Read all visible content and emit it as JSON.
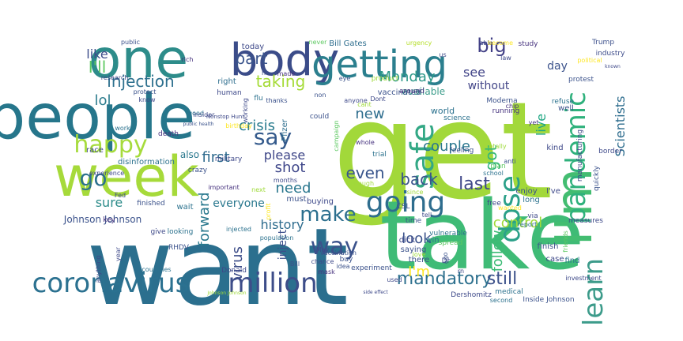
{
  "wordcloud": {
    "background": "#ffffff",
    "words": [
      {
        "text": "get",
        "color": "#a2d83a"
      },
      {
        "text": "want",
        "color": "#2b6f8e"
      },
      {
        "text": "take",
        "color": "#3fbb76"
      },
      {
        "text": "people",
        "color": "#26768b"
      },
      {
        "text": "week",
        "color": "#a6da3a"
      },
      {
        "text": "one",
        "color": "#2d8c8a"
      },
      {
        "text": "body",
        "color": "#3b4c89"
      },
      {
        "text": "getting",
        "color": "#2b7f8e"
      },
      {
        "text": "I'm",
        "color": "#43bd71"
      },
      {
        "text": "coronavirus",
        "color": "#2b7190"
      },
      {
        "text": "million",
        "color": "#3d4d89"
      },
      {
        "text": "safe",
        "color": "#33a885"
      },
      {
        "text": "dose",
        "color": "#2ba089"
      },
      {
        "text": "going",
        "color": "#2e6d8e"
      },
      {
        "text": "say",
        "color": "#345a8c"
      },
      {
        "text": "pandemic",
        "color": "#2fb17c"
      },
      {
        "text": "learn",
        "color": "#3c9b8a"
      },
      {
        "text": "way",
        "color": "#3b528b"
      },
      {
        "text": "make",
        "color": "#2c6f8e"
      },
      {
        "text": "happy",
        "color": "#a6db3c"
      },
      {
        "text": "go",
        "color": "#2c718e"
      },
      {
        "text": "injection",
        "color": "#2d708e"
      },
      {
        "text": "taking",
        "color": "#a5db36"
      },
      {
        "text": "part",
        "color": "#3a548c"
      },
      {
        "text": "big",
        "color": "#424086"
      },
      {
        "text": "lol",
        "color": "#2e7d8e"
      },
      {
        "text": "like",
        "color": "#3d4d8a"
      },
      {
        "text": "I'll",
        "color": "#5ec962"
      },
      {
        "text": "Monday",
        "color": "#2c9889"
      },
      {
        "text": "mandatory",
        "color": "#2d708e"
      },
      {
        "text": "still",
        "color": "#3c518a"
      },
      {
        "text": "I'm",
        "color": "#fde725"
      },
      {
        "text": "crisis",
        "color": "#2a7c8e"
      },
      {
        "text": "first",
        "color": "#2f6b8e"
      },
      {
        "text": "shot",
        "color": "#3f478a"
      },
      {
        "text": "need",
        "color": "#2a778e"
      },
      {
        "text": "sure",
        "color": "#2d8c8a"
      },
      {
        "text": "history",
        "color": "#2e6c8e"
      },
      {
        "text": "forward",
        "color": "#2a798e"
      },
      {
        "text": "virus",
        "color": "#3d4d89"
      },
      {
        "text": "control",
        "color": "#a0da39"
      },
      {
        "text": "even",
        "color": "#39558c"
      },
      {
        "text": "last",
        "color": "#3f4889"
      },
      {
        "text": "back",
        "color": "#3a548c"
      },
      {
        "text": "couple",
        "color": "#2a778e"
      },
      {
        "text": "follow",
        "color": "#3bbb75"
      },
      {
        "text": "look",
        "color": "#3b528b"
      },
      {
        "text": "new",
        "color": "#2e6d8e"
      },
      {
        "text": "got",
        "color": "#35b779"
      },
      {
        "text": "see",
        "color": "#404387"
      },
      {
        "text": "live",
        "color": "#22a884"
      },
      {
        "text": "Scientists",
        "color": "#2e6d8e"
      },
      {
        "text": "day",
        "color": "#3b528b"
      },
      {
        "text": "without",
        "color": "#414487"
      },
      {
        "text": "please",
        "color": "#3f4788"
      },
      {
        "text": "everyone",
        "color": "#2a788e"
      },
      {
        "text": "inject",
        "color": "#3c4e8a"
      },
      {
        "text": "also",
        "color": "#2a788e"
      },
      {
        "text": "Johnson Johnson",
        "color": "#3b528b"
      },
      {
        "text": "Bill Gates",
        "color": "#2e6e8e"
      },
      {
        "text": "today",
        "color": "#3e4989"
      },
      {
        "text": "available",
        "color": "#3c9d8b"
      },
      {
        "text": "vaccinated",
        "color": "#3b528b"
      },
      {
        "text": "Trump",
        "color": "#3c508b"
      },
      {
        "text": "industry",
        "color": "#3e4c8a"
      },
      {
        "text": "study",
        "color": "#46327e"
      },
      {
        "text": "public",
        "color": "#3b518b"
      },
      {
        "text": "never",
        "color": "#5ec962"
      },
      {
        "text": "urgency",
        "color": "#b5de2b"
      },
      {
        "text": "able",
        "color": "#3e4989"
      },
      {
        "text": "become",
        "color": "#fde725"
      },
      {
        "text": "right",
        "color": "#2e6e8e"
      },
      {
        "text": "human",
        "color": "#3e4989"
      },
      {
        "text": "Pfizer",
        "color": "#2e6e8e"
      },
      {
        "text": "Moderna",
        "color": "#3b528b"
      },
      {
        "text": "world",
        "color": "#2c728e"
      },
      {
        "text": "science",
        "color": "#2c728e"
      },
      {
        "text": "research",
        "color": "#3e4989"
      },
      {
        "text": "product",
        "color": "#9fda3a"
      },
      {
        "text": "around",
        "color": "#46327e"
      },
      {
        "text": "running",
        "color": "#46327e"
      },
      {
        "text": "protest",
        "color": "#3b528b"
      },
      {
        "text": "refuse",
        "color": "#2c728e"
      },
      {
        "text": "well",
        "color": "#3b528b"
      },
      {
        "text": "kind",
        "color": "#3e4989"
      },
      {
        "text": "yet",
        "color": "#46327e"
      },
      {
        "text": "border",
        "color": "#3e4989"
      },
      {
        "text": "quickly",
        "color": "#3b528b"
      },
      {
        "text": "feeling",
        "color": "#3b528b"
      },
      {
        "text": "manufacturing",
        "color": "#3e4989"
      },
      {
        "text": "totally",
        "color": "#9fda3a"
      },
      {
        "text": "trial",
        "color": "#2c728e"
      },
      {
        "text": "whole",
        "color": "#46327e"
      },
      {
        "text": "campaign",
        "color": "#5ec962"
      },
      {
        "text": "race",
        "color": "#3e4989"
      },
      {
        "text": "work",
        "color": "#2c728e"
      },
      {
        "text": "death",
        "color": "#46327e"
      },
      {
        "text": "good",
        "color": "#2c728e"
      },
      {
        "text": "could",
        "color": "#3b528b"
      },
      {
        "text": "military",
        "color": "#3e4989"
      },
      {
        "text": "disinformation",
        "color": "#2c728e"
      },
      {
        "text": "experience",
        "color": "#3e4989"
      },
      {
        "text": "crazy",
        "color": "#3b528b"
      },
      {
        "text": "important",
        "color": "#46327e"
      },
      {
        "text": "months",
        "color": "#3e4989"
      },
      {
        "text": "must",
        "color": "#3b528b"
      },
      {
        "text": "enough",
        "color": "#9fda3a"
      },
      {
        "text": "school",
        "color": "#2c728e"
      },
      {
        "text": "plan",
        "color": "#5ec962"
      },
      {
        "text": "enjoy",
        "color": "#3b528b"
      },
      {
        "text": "I've",
        "color": "#3e4989"
      },
      {
        "text": "long",
        "color": "#2c728e"
      },
      {
        "text": "wanted",
        "color": "#fde725"
      },
      {
        "text": "free",
        "color": "#3e4989"
      },
      {
        "text": "finished",
        "color": "#3b528b"
      },
      {
        "text": "wait",
        "color": "#2c728e"
      },
      {
        "text": "buying",
        "color": "#3e4989"
      },
      {
        "text": "injected",
        "color": "#2c728e"
      },
      {
        "text": "profit",
        "color": "#fde725"
      },
      {
        "text": "time",
        "color": "#3b528b"
      },
      {
        "text": "vulnerable",
        "color": "#2c728e"
      },
      {
        "text": "measures",
        "color": "#3e4989"
      },
      {
        "text": "looking",
        "color": "#2c728e"
      },
      {
        "text": "give",
        "color": "#3e4989"
      },
      {
        "text": "key",
        "color": "#46327e"
      },
      {
        "text": "RHDV",
        "color": "#3b528b"
      },
      {
        "text": "Donald",
        "color": "#3e4989"
      },
      {
        "text": "saying",
        "color": "#3b528b"
      },
      {
        "text": "dick",
        "color": "#3e4989"
      },
      {
        "text": "win",
        "color": "#2c728e"
      },
      {
        "text": "spread",
        "color": "#5ec962"
      },
      {
        "text": "finish",
        "color": "#3b528b"
      },
      {
        "text": "case",
        "color": "#3e4989"
      },
      {
        "text": "find",
        "color": "#2c728e"
      },
      {
        "text": "there",
        "color": "#3b528b"
      },
      {
        "text": "love",
        "color": "#9fda3a"
      },
      {
        "text": "countries",
        "color": "#2c728e"
      },
      {
        "text": "anything",
        "color": "#3e4989"
      },
      {
        "text": "experiment",
        "color": "#3b528b"
      },
      {
        "text": "Dershomitz",
        "color": "#3e4989"
      },
      {
        "text": "Inside Johnson",
        "color": "#3b528b"
      },
      {
        "text": "medical",
        "color": "#2c728e"
      },
      {
        "text": "used",
        "color": "#3e4989"
      },
      {
        "text": "idea",
        "color": "#3b528b"
      },
      {
        "text": "chance",
        "color": "#3e4989"
      },
      {
        "text": "mask",
        "color": "#46327e"
      },
      {
        "text": "year",
        "color": "#3e4989"
      },
      {
        "text": "Bill",
        "color": "#3b528b"
      },
      {
        "text": "Dr",
        "color": "#3e4989"
      },
      {
        "text": "buy",
        "color": "#3b528b"
      },
      {
        "text": "second",
        "color": "#2c728e"
      },
      {
        "text": "law",
        "color": "#3e4989"
      },
      {
        "text": "rich",
        "color": "#46327e"
      },
      {
        "text": "insider",
        "color": "#3e4989"
      },
      {
        "text": "thanks",
        "color": "#3b528b"
      },
      {
        "text": "made",
        "color": "#46327e"
      },
      {
        "text": "he",
        "color": "#3e4989"
      },
      {
        "text": "eye",
        "color": "#3b528b"
      },
      {
        "text": "anyone",
        "color": "#3e4989"
      },
      {
        "text": "cant",
        "color": "#9fda3a"
      },
      {
        "text": "Dont",
        "color": "#3e4989"
      },
      {
        "text": "non",
        "color": "#3b528b"
      },
      {
        "text": "flu",
        "color": "#2c728e"
      },
      {
        "text": "working",
        "color": "#3e4989"
      },
      {
        "text": "birthday",
        "color": "#fde725"
      },
      {
        "text": "population",
        "color": "#2c728e"
      },
      {
        "text": "since",
        "color": "#9fda3a"
      },
      {
        "text": "via",
        "color": "#3e4989"
      },
      {
        "text": "anti",
        "color": "#3b528b"
      },
      {
        "text": "chip",
        "color": "#46327e"
      },
      {
        "text": "us",
        "color": "#3e4989"
      },
      {
        "text": "political",
        "color": "#fde725"
      },
      {
        "text": "vaccination",
        "color": "#3b528b"
      },
      {
        "text": "May",
        "color": "#3e4989"
      },
      {
        "text": "report",
        "color": "#2c728e"
      },
      {
        "text": "investment",
        "color": "#3e4989"
      },
      {
        "text": "friends",
        "color": "#5ec962"
      },
      {
        "text": "Nonstop Hunt",
        "color": "#3e4989"
      },
      {
        "text": "public health",
        "color": "#3b528b"
      },
      {
        "text": "side effect",
        "color": "#3e4989"
      },
      {
        "text": "Johnson Johnson",
        "color": "#9fda3a"
      },
      {
        "text": "known",
        "color": "#3e4989"
      },
      {
        "text": "protect",
        "color": "#3b528b"
      },
      {
        "text": "know",
        "color": "#3e4989"
      },
      {
        "text": "CSL",
        "color": "#3b528b"
      },
      {
        "text": "tell",
        "color": "#3e4989"
      },
      {
        "text": "next",
        "color": "#9fda3a"
      },
      {
        "text": "Fed",
        "color": "#3e4989"
      },
      {
        "text": "ago",
        "color": "#3b528b"
      },
      {
        "text": "rn",
        "color": "#3e4989"
      }
    ]
  }
}
